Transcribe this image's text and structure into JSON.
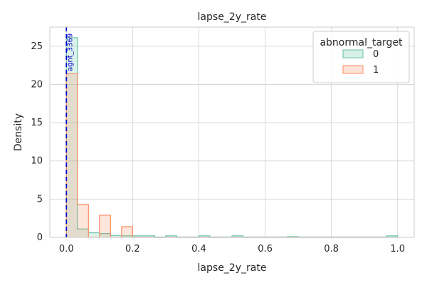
{
  "chart_data": {
    "type": "histogram",
    "title": "lapse_2y_rate",
    "xlabel": "lapse_2y_rate",
    "ylabel": "Density",
    "xlim": [
      -0.05,
      1.05
    ],
    "ylim": [
      0,
      27.5
    ],
    "xticks": [
      0.0,
      0.2,
      0.4,
      0.6,
      0.8,
      1.0
    ],
    "xtick_labels": [
      "0.0",
      "0.2",
      "0.4",
      "0.6",
      "0.8",
      "1.0"
    ],
    "yticks": [
      0,
      5,
      10,
      15,
      20,
      25
    ],
    "ytick_labels": [
      "0",
      "5",
      "10",
      "15",
      "20",
      "25"
    ],
    "grid": true,
    "bin_width": 0.0333,
    "bin_starts": [
      0.0,
      0.0333,
      0.0667,
      0.1,
      0.1333,
      0.1667,
      0.2,
      0.2333,
      0.2667,
      0.3,
      0.3333,
      0.3667,
      0.4,
      0.4333,
      0.4667,
      0.5,
      0.5333,
      0.5667,
      0.6,
      0.6333,
      0.6667,
      0.7,
      0.7333,
      0.7667,
      0.8,
      0.8333,
      0.8667,
      0.9,
      0.9333,
      0.9667
    ],
    "legend": {
      "title": "abnormal_target",
      "position": "upper right"
    },
    "series": [
      {
        "name": "0",
        "stroke": "#66c2a5",
        "fill": "#66c2a5",
        "values": [
          26.1,
          1.1,
          0.6,
          0.5,
          0.25,
          0.2,
          0.2,
          0.2,
          0.05,
          0.2,
          0.05,
          0.05,
          0.2,
          0.05,
          0.05,
          0.2,
          0.05,
          0.05,
          0.05,
          0.05,
          0.1,
          0.05,
          0.05,
          0.05,
          0.05,
          0.05,
          0.05,
          0.05,
          0.05,
          0.2
        ]
      },
      {
        "name": "1",
        "stroke": "#fc8d62",
        "fill": "#fc8d62",
        "values": [
          21.4,
          4.3,
          0.0,
          2.9,
          0.0,
          1.4,
          0.0,
          0.0,
          0.0,
          0.0,
          0.0,
          0.0,
          0.0,
          0.0,
          0.0,
          0.0,
          0.0,
          0.0,
          0.0,
          0.0,
          0.0,
          0.0,
          0.0,
          0.0,
          0.0,
          0.0,
          0.0,
          0.0,
          0.0,
          0.0
        ]
      }
    ],
    "reference_line": {
      "x": 0.0,
      "label": "agnt_3369",
      "color": "#0000cc"
    }
  }
}
